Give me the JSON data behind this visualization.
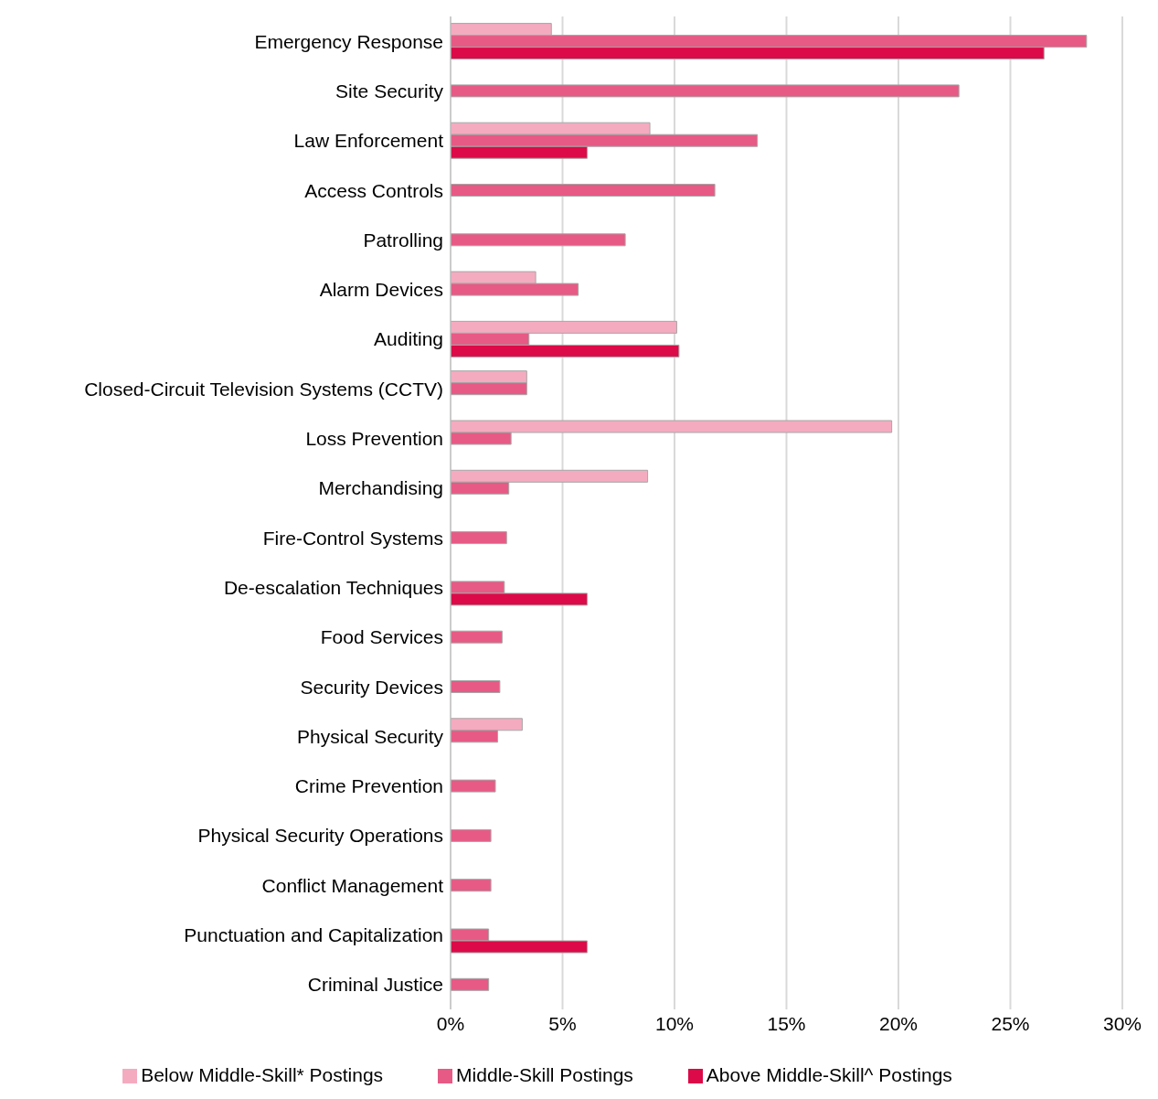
{
  "chart_data": {
    "type": "bar",
    "orientation": "horizontal",
    "categories": [
      "Emergency Response",
      "Site Security",
      "Law Enforcement",
      "Access Controls",
      "Patrolling",
      "Alarm Devices",
      "Auditing",
      "Closed-Circuit Television Systems (CCTV)",
      "Loss Prevention",
      "Merchandising",
      "Fire-Control Systems",
      "De-escalation Techniques",
      "Food Services",
      "Security Devices",
      "Physical Security",
      "Crime Prevention",
      "Physical Security Operations",
      "Conflict Management",
      "Punctuation and Capitalization",
      "Criminal Justice"
    ],
    "series": [
      {
        "name": "Below Middle-Skill* Postings",
        "color": "#f4abc0",
        "values": [
          4.5,
          null,
          8.9,
          null,
          null,
          3.8,
          10.1,
          3.4,
          19.7,
          8.8,
          null,
          null,
          null,
          null,
          3.2,
          null,
          null,
          null,
          null,
          null
        ]
      },
      {
        "name": "Middle-Skill Postings",
        "color": "#e75a85",
        "values": [
          28.4,
          22.7,
          13.7,
          11.8,
          7.8,
          5.7,
          3.5,
          3.4,
          2.7,
          2.6,
          2.5,
          2.4,
          2.3,
          2.2,
          2.1,
          2.0,
          1.8,
          1.8,
          1.7,
          1.7
        ]
      },
      {
        "name": "Above Middle-Skill^ Postings",
        "color": "#dc0a48",
        "values": [
          26.5,
          null,
          6.1,
          null,
          null,
          null,
          10.2,
          null,
          null,
          null,
          null,
          6.1,
          null,
          null,
          null,
          null,
          null,
          null,
          6.1,
          null
        ]
      }
    ],
    "xlim": [
      0,
      30
    ],
    "xticks": [
      {
        "value": 0,
        "label": "0%"
      },
      {
        "value": 5,
        "label": "5%"
      },
      {
        "value": 10,
        "label": "10%"
      },
      {
        "value": 15,
        "label": "15%"
      },
      {
        "value": 20,
        "label": "20%"
      },
      {
        "value": 25,
        "label": "25%"
      },
      {
        "value": 30,
        "label": "30%"
      }
    ],
    "grid": "x",
    "legend": "bottom"
  }
}
